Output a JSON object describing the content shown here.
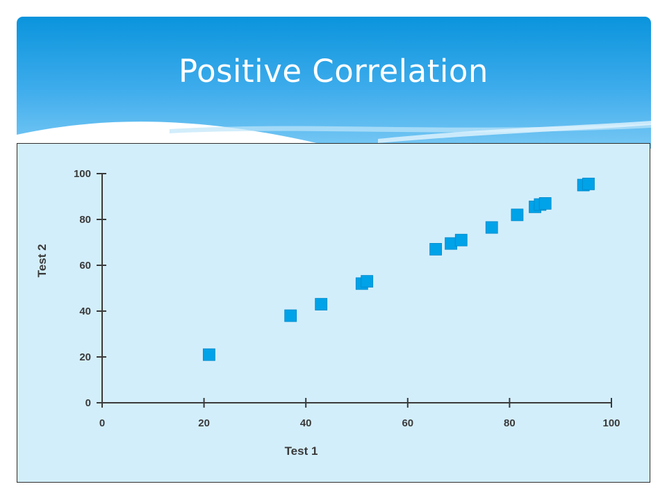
{
  "slide": {
    "title": "Positive Correlation"
  },
  "colors": {
    "header_top": "#0a94dc",
    "header_bottom": "#77c8f4",
    "chart_background": "#d3eefb",
    "marker": "#00a2e8",
    "axis": "#3a3a3a"
  },
  "chart_data": {
    "type": "scatter",
    "title": "",
    "xlabel": "Test 1",
    "ylabel": "Test 2",
    "xlim": [
      0,
      100
    ],
    "ylim": [
      0,
      100
    ],
    "x_ticks": [
      0,
      20,
      40,
      60,
      80,
      100
    ],
    "y_ticks": [
      0,
      20,
      40,
      60,
      80,
      100
    ],
    "grid": false,
    "marker": "square",
    "points": [
      {
        "x": 21,
        "y": 21
      },
      {
        "x": 37,
        "y": 38
      },
      {
        "x": 43,
        "y": 43
      },
      {
        "x": 51,
        "y": 52
      },
      {
        "x": 52,
        "y": 53
      },
      {
        "x": 65.5,
        "y": 67
      },
      {
        "x": 68.5,
        "y": 69.5
      },
      {
        "x": 70.5,
        "y": 71
      },
      {
        "x": 76.5,
        "y": 76.5
      },
      {
        "x": 81.5,
        "y": 82
      },
      {
        "x": 85,
        "y": 85.5
      },
      {
        "x": 86,
        "y": 86.5
      },
      {
        "x": 87,
        "y": 87
      },
      {
        "x": 94.5,
        "y": 95
      },
      {
        "x": 95.5,
        "y": 95.5
      }
    ]
  }
}
